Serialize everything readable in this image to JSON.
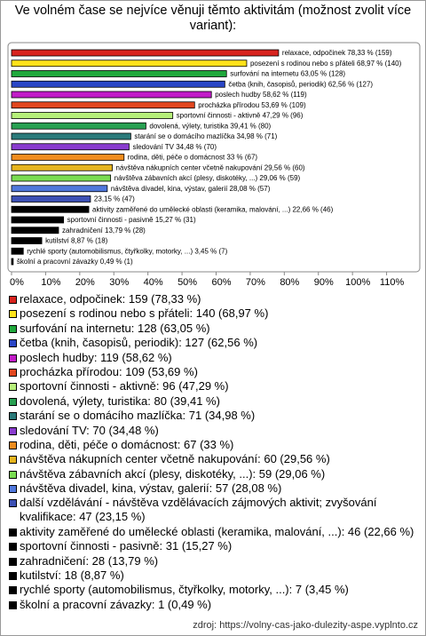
{
  "chart_data": {
    "type": "bar",
    "orientation": "horizontal",
    "title": "Ve volném čase se nejvíce věnuji těmto aktivitám (možnost zvolit více variant):",
    "categories": [
      "relaxace, odpočinek",
      "posezení s rodinou nebo s přáteli",
      "surfování na internetu",
      "četba (knih, časopisů, periodik)",
      "poslech hudby",
      "procházka přírodou",
      "sportovní činnosti - aktivně",
      "dovolená, výlety, turistika",
      "starání se o domácího mazlíčka",
      "sledování TV",
      "rodina, děti, péče o domácnost",
      "návštěva nákupních center včetně nakupování",
      "návštěva zábavních akcí (plesy, diskotéky, ...)",
      "návštěva divadel, kina, výstav, galerií",
      "další vzdělávání - návštěva vzdělávacích zájmových aktivit; zvyšování kvalifikace",
      "aktivity zaměřené do umělecké oblasti (keramika, malování, ...)",
      "sportovní činnosti - pasivně",
      "zahradničení",
      "kutilství",
      "rychlé sporty (automobilismus, čtyřkolky, motorky, ...)",
      "školní a pracovní závazky"
    ],
    "values": [
      78.33,
      68.97,
      63.05,
      62.56,
      58.62,
      53.69,
      47.29,
      39.41,
      34.98,
      34.48,
      33,
      29.56,
      29.06,
      28.08,
      23.15,
      22.66,
      15.27,
      13.79,
      8.87,
      3.45,
      0.49
    ],
    "value_labels": [
      "relaxace, odpočinek 78,33 % (159)",
      "posezení s rodinou nebo s přáteli 68,97 % (140)",
      "surfování na internetu 63,05 % (128)",
      "četba (knih, časopisů, periodik) 62,56 % (127)",
      "poslech hudby 58,62 % (119)",
      "procházka přírodou 53,69 % (109)",
      "sportovní činnosti - aktivně 47,29 % (96)",
      "dovolená, výlety, turistika 39,41 % (80)",
      "starání se o domácího mazlíčka 34,98 % (71)",
      "sledování TV 34,48 % (70)",
      "rodina, děti, péče o domácnost 33 % (67)",
      "návštěva nákupních center včetně nakupování 29,56 % (60)",
      "návštěva zábavních akcí (plesy, diskotéky, ...) 29,06 % (59)",
      "návštěva divadel, kina, výstav, galerií 28,08 % (57)",
      "23,15 % (47)",
      "aktivity zaměřené do umělecké oblasti (keramika, malování, ...) 22,66 % (46)",
      "sportovní činnosti - pasivně 15,27 % (31)",
      "zahradničení 13,79 % (28)",
      "kutilství 8,87 % (18)",
      "rychlé sporty (automobilismus, čtyřkolky, motorky, ...) 3,45 % (7)",
      "školní a pracovní závazky 0,49 % (1)"
    ],
    "legend_labels": [
      "relaxace, odpočinek: 159 (78,33 %)",
      "posezení s rodinou nebo s přáteli: 140 (68,97 %)",
      "surfování na internetu: 128 (63,05 %)",
      "četba (knih, časopisů, periodik): 127 (62,56 %)",
      "poslech hudby: 119 (58,62 %)",
      "procházka přírodou: 109 (53,69 %)",
      "sportovní činnosti - aktivně: 96 (47,29 %)",
      "dovolená, výlety, turistika: 80 (39,41 %)",
      "starání se o domácího mazlíčka: 71 (34,98 %)",
      "sledování TV: 70 (34,48 %)",
      "rodina, děti, péče o domácnost: 67 (33 %)",
      "návštěva nákupních center včetně nakupování: 60 (29,56 %)",
      "návštěva zábavních akcí (plesy, diskotéky, ...): 59 (29,06 %)",
      "návštěva divadel, kina, výstav, galerií: 57 (28,08 %)",
      "další vzdělávání - návštěva vzdělávacích zájmových aktivit; zvyšování kvalifikace: 47 (23,15 %)",
      "aktivity zaměřené do umělecké oblasti (keramika, malování, ...): 46 (22,66 %)",
      "sportovní činnosti - pasivně: 31 (15,27 %)",
      "zahradničení: 28 (13,79 %)",
      "kutilství: 18 (8,87 %)",
      "rychlé sporty (automobilismus, čtyřkolky, motorky, ...): 7 (3,45 %)",
      "školní a pracovní závazky: 1 (0,49 %)"
    ],
    "colors": [
      "#d8231e",
      "#ffe21a",
      "#20a83c",
      "#2a46c6",
      "#c21cc8",
      "#e2471f",
      "#b6f07a",
      "#28a052",
      "#2a7a7a",
      "#8a3ccf",
      "#f08c1e",
      "#e6b41e",
      "#7adc52",
      "#5078dc",
      "#3c50b4",
      "#000000",
      "#000000",
      "#000000",
      "#000000",
      "#000000",
      "#000000"
    ],
    "xlim": [
      0,
      120
    ],
    "xticks": [
      {
        "value": 0,
        "label": "0%"
      },
      {
        "value": 10,
        "label": "10%"
      },
      {
        "value": 20,
        "label": "20%"
      },
      {
        "value": 30,
        "label": "30%"
      },
      {
        "value": 40,
        "label": "40%"
      },
      {
        "value": 50,
        "label": "50%"
      },
      {
        "value": 60,
        "label": "60%"
      },
      {
        "value": 70,
        "label": "70%"
      },
      {
        "value": 80,
        "label": "80%"
      },
      {
        "value": 90,
        "label": "90%"
      },
      {
        "value": 100,
        "label": "100%"
      },
      {
        "value": 110,
        "label": "110%"
      }
    ],
    "grid": false,
    "source": "zdroj: https://volny-cas-jako-dulezity-aspe.vyplnto.cz"
  }
}
